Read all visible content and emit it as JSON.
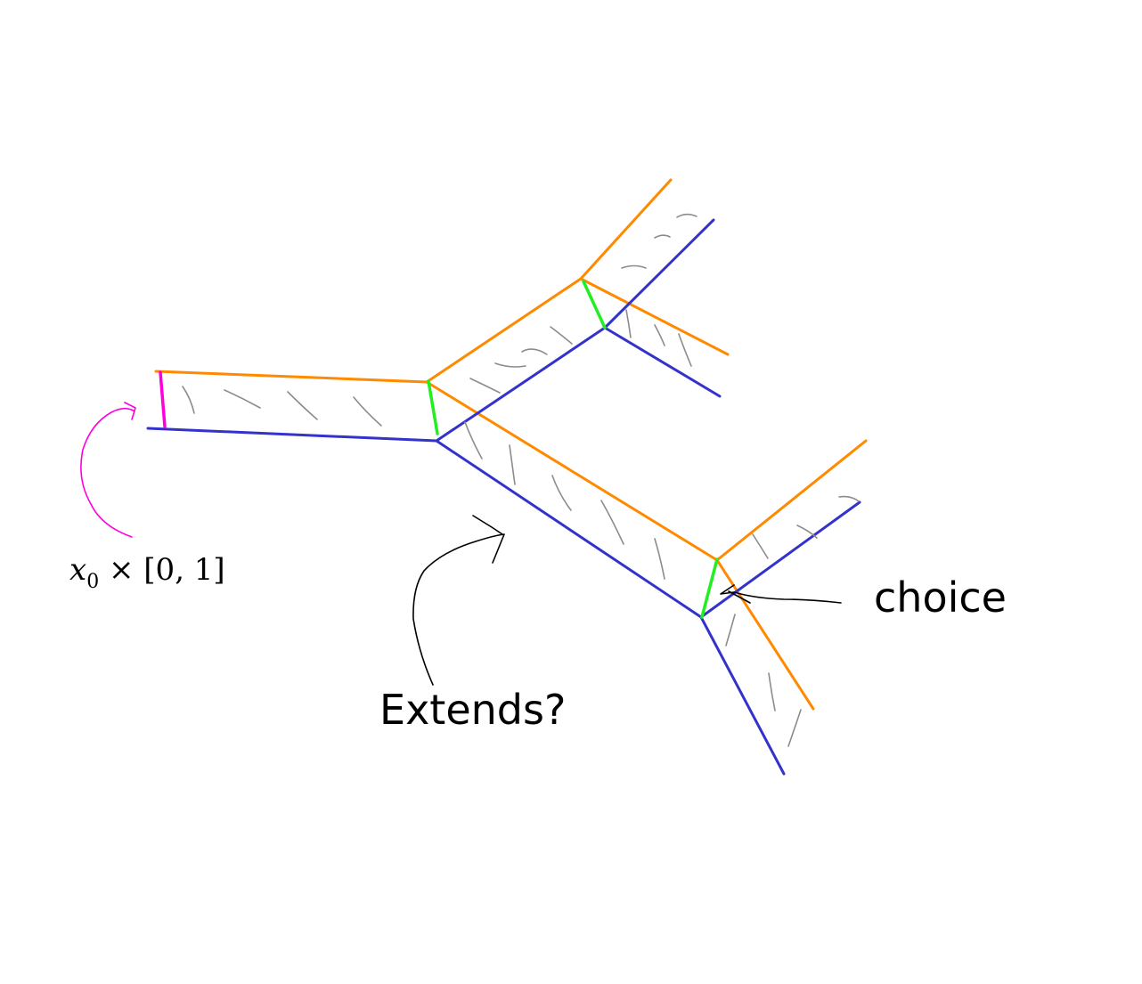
{
  "labels": {
    "base": {
      "var": "x",
      "sub": "0",
      "rest": " × [0, 1]"
    },
    "extends": "Extends?",
    "choice": "choice"
  },
  "colors": {
    "orange": "#ff8a00",
    "blue": "#3333cc",
    "green": "#22ee22",
    "magenta": "#ff00dd",
    "hatch": "#8c8c8c",
    "ink": "#000000"
  }
}
